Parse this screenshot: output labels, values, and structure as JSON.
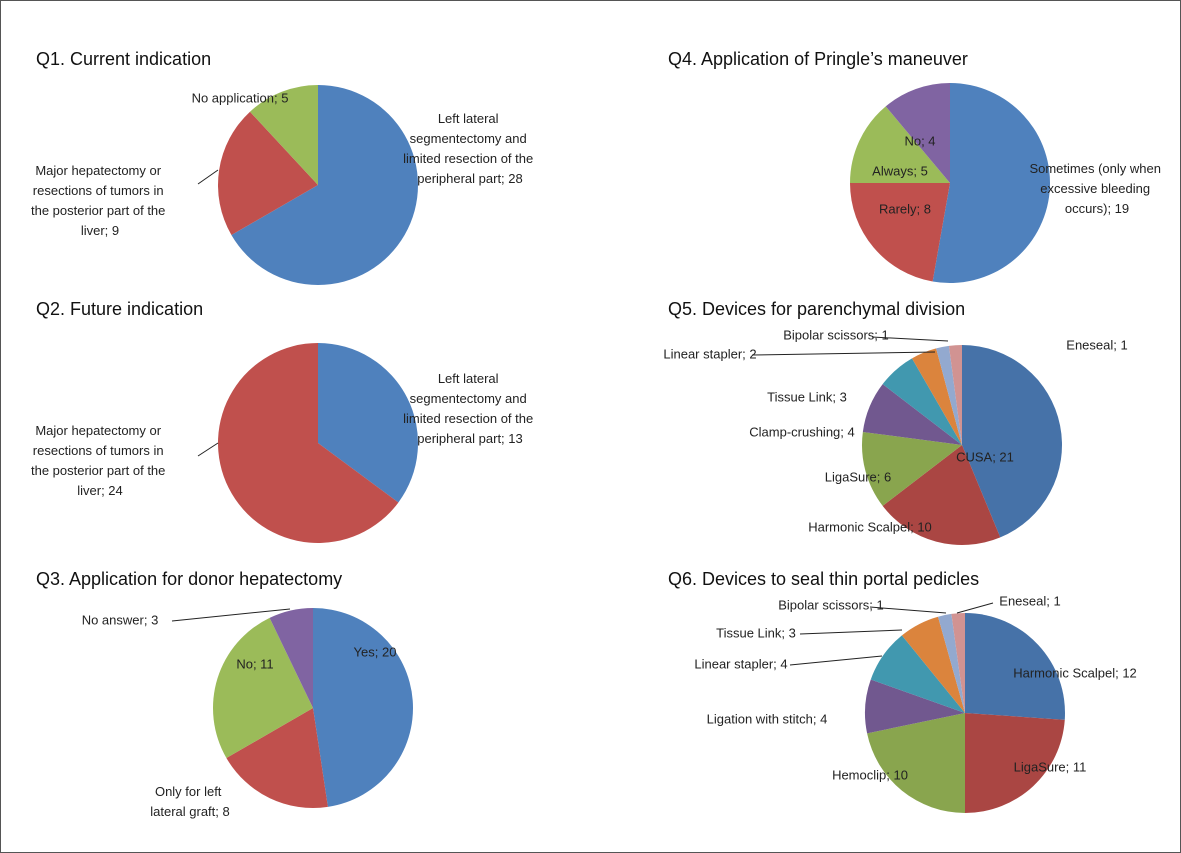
{
  "chart_data": [
    {
      "type": "pie",
      "title": "Q1. Current indication",
      "values": [
        28,
        9,
        5
      ],
      "value_labels": [
        "Left lateral segmentectomy and limited resection of the peripheral part; 28",
        "Major hepatectomy or resections of tumors in the posterior part of the liver; 9",
        "No application; 5"
      ],
      "colors": [
        "#4f81bd",
        "#c0504d",
        "#9bbb59"
      ]
    },
    {
      "type": "pie",
      "title": "Q2. Future indication",
      "values": [
        13,
        24
      ],
      "value_labels": [
        "Left lateral segmentectomy and limited resection of the peripheral part; 13",
        "Major hepatectomy or resections of tumors in the posterior part of the liver; 24"
      ],
      "colors": [
        "#4f81bd",
        "#c0504d"
      ]
    },
    {
      "type": "pie",
      "title": "Q3. Application for donor hepatectomy",
      "values": [
        20,
        8,
        11,
        3
      ],
      "value_labels": [
        "Yes; 20",
        "Only for left lateral graft; 8",
        "No; 11",
        "No answer; 3"
      ],
      "colors": [
        "#4f81bd",
        "#c0504d",
        "#9bbb59",
        "#8064a2"
      ]
    },
    {
      "type": "pie",
      "title": "Q4. Application of Pringle’s maneuver",
      "values": [
        19,
        8,
        5,
        4
      ],
      "value_labels": [
        "Sometimes (only when excessive bleeding occurs); 19",
        "Rarely; 8",
        "Always; 5",
        "No; 4"
      ],
      "colors": [
        "#4f81bd",
        "#c0504d",
        "#9bbb59",
        "#8064a2"
      ]
    },
    {
      "type": "pie",
      "title": "Q5. Devices for parenchymal division",
      "values": [
        21,
        10,
        6,
        4,
        3,
        2,
        1,
        1
      ],
      "value_labels": [
        "CUSA; 21",
        "Harmonic Scalpel; 10",
        "LigaSure; 6",
        "Clamp-crushing; 4",
        "Tissue Link; 3",
        "Linear stapler; 2",
        "Bipolar scissors; 1",
        "Eneseal; 1"
      ],
      "colors": [
        "#4672a8",
        "#aa4643",
        "#89a54e",
        "#71588f",
        "#4198af",
        "#db843d",
        "#93a9cf",
        "#d19392"
      ]
    },
    {
      "type": "pie",
      "title": "Q6. Devices to seal thin portal pedicles",
      "values": [
        12,
        11,
        10,
        4,
        4,
        3,
        1,
        1
      ],
      "value_labels": [
        "Harmonic Scalpel; 12",
        "LigaSure; 11",
        "Hemoclip; 10",
        "Ligation with stitch; 4",
        "Linear stapler; 4",
        "Tissue Link; 3",
        "Bipolar scissors; 1",
        "Eneseal; 1"
      ],
      "colors": [
        "#4672a8",
        "#aa4643",
        "#89a54e",
        "#71588f",
        "#4198af",
        "#db843d",
        "#93a9cf",
        "#d19392"
      ]
    }
  ]
}
